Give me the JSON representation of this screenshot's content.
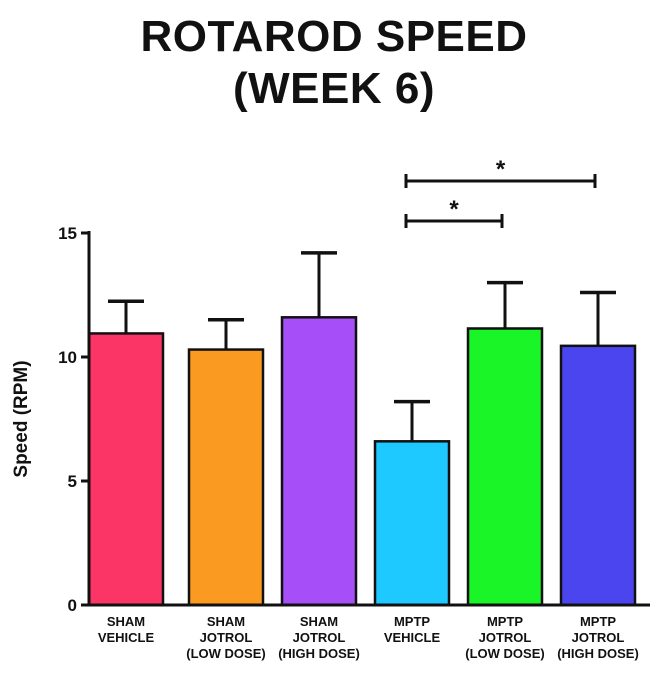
{
  "chart_data": {
    "type": "bar",
    "title_lines": [
      "ROTAROD SPEED",
      "(WEEK 6)"
    ],
    "ylabel": "Speed  (RPM)",
    "xlabel": "",
    "ylim": [
      0,
      15
    ],
    "yticks": [
      0,
      5,
      10,
      15
    ],
    "grid": false,
    "categories": [
      [
        "SHAM",
        "VEHICLE"
      ],
      [
        "SHAM",
        "JOTROL",
        "(LOW DOSE)"
      ],
      [
        "SHAM",
        "JOTROL",
        "(HIGH DOSE)"
      ],
      [
        "MPTP",
        "VEHICLE"
      ],
      [
        "MPTP",
        "JOTROL",
        "(LOW DOSE)"
      ],
      [
        "MPTP",
        "JOTROL",
        "(HIGH DOSE)"
      ]
    ],
    "values": [
      10.95,
      10.3,
      11.6,
      6.6,
      11.15,
      10.45
    ],
    "errors": [
      1.3,
      1.2,
      2.6,
      1.6,
      1.85,
      2.15
    ],
    "colors": [
      "#fb3565",
      "#fb9a21",
      "#a64ef7",
      "#1ec9ff",
      "#19f527",
      "#4b45f0"
    ],
    "significance": [
      {
        "from": 3,
        "to": 4,
        "label": "*"
      },
      {
        "from": 3,
        "to": 5,
        "label": "*"
      }
    ]
  }
}
